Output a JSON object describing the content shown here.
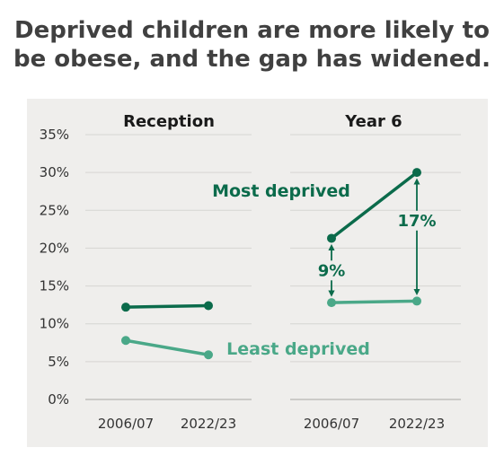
{
  "title_lines": [
    "Deprived children are more likely to",
    "be obese, and the gap has widened."
  ],
  "colors": {
    "most": "#0b6b4b",
    "least": "#4aa888",
    "panel": "#efeeec",
    "grid": "#d6d5d2",
    "text": "#333333",
    "title": "#404040"
  },
  "chart_data": {
    "type": "line",
    "ylim": [
      0,
      35
    ],
    "yticks": [
      0,
      5,
      10,
      15,
      20,
      25,
      30,
      35
    ],
    "ytick_labels": [
      "0%",
      "5%",
      "10%",
      "15%",
      "20%",
      "25%",
      "30%",
      "35%"
    ],
    "categories": [
      "2006/07",
      "2022/23"
    ],
    "legend": "inline labels",
    "grid": true,
    "facets": [
      {
        "name": "Reception",
        "series": [
          {
            "name": "Most deprived",
            "values": [
              12.2,
              12.4
            ]
          },
          {
            "name": "Least deprived",
            "values": [
              7.8,
              5.9
            ]
          }
        ]
      },
      {
        "name": "Year 6",
        "series": [
          {
            "name": "Most deprived",
            "values": [
              21.3,
              30.0
            ]
          },
          {
            "name": "Least deprived",
            "values": [
              12.8,
              13.0
            ]
          }
        ]
      }
    ],
    "annotations": [
      {
        "text": "Most deprived",
        "series": "Most deprived"
      },
      {
        "text": "Least deprived",
        "series": "Least deprived"
      },
      {
        "text": "9%",
        "facet": "Year 6",
        "category": "2006/07",
        "type": "gap-arrow"
      },
      {
        "text": "17%",
        "facet": "Year 6",
        "category": "2022/23",
        "type": "gap-arrow"
      }
    ]
  }
}
